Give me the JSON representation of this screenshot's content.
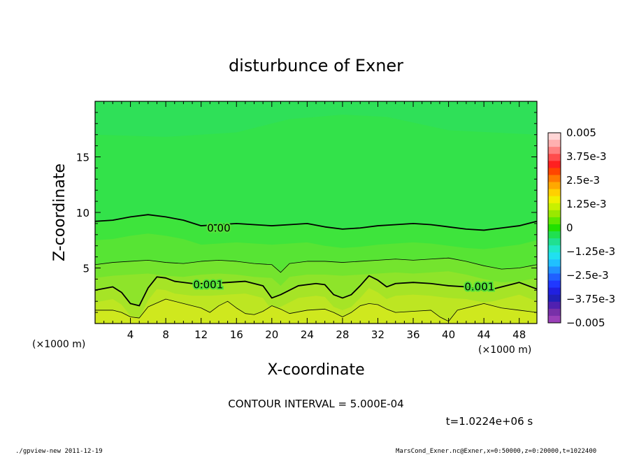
{
  "chart_data": {
    "type": "heatmap",
    "title": "disturbunce of Exner",
    "xlabel": "X-coordinate",
    "ylabel": "Z-coordinate",
    "x_unit": "(×1000 m)",
    "x_unit_left": "(×1000 m)",
    "xlim": [
      0,
      50
    ],
    "ylim": [
      0,
      20
    ],
    "xticks": [
      4,
      8,
      12,
      16,
      20,
      24,
      28,
      32,
      36,
      40,
      44,
      48
    ],
    "yticks": [
      5,
      10,
      15
    ],
    "colorbar": {
      "min": -0.005,
      "max": 0.005,
      "labels": [
        "0.005",
        "3.75e-3",
        "2.5e-3",
        "1.25e-3",
        "0",
        "−1.25e-3",
        "−2.5e-3",
        "−3.75e-3",
        "−0.005"
      ],
      "values": [
        0.005,
        0.00375,
        0.0025,
        0.00125,
        0,
        -0.00125,
        -0.0025,
        -0.00375,
        -0.005
      ]
    },
    "contour_labels": [
      {
        "text": "0.00",
        "x": 14.0,
        "z": 8.6
      },
      {
        "text": "0.001",
        "x": 12.8,
        "z": 3.5
      },
      {
        "text": "0.001",
        "x": 43.5,
        "z": 3.3
      }
    ],
    "contours": [
      {
        "level": "0.0000",
        "weight": "bold",
        "points": [
          [
            0,
            9.2
          ],
          [
            2,
            9.3
          ],
          [
            4,
            9.6
          ],
          [
            6,
            9.8
          ],
          [
            8,
            9.6
          ],
          [
            10,
            9.3
          ],
          [
            12,
            8.8
          ],
          [
            14,
            8.9
          ],
          [
            16,
            9.0
          ],
          [
            18,
            8.9
          ],
          [
            20,
            8.8
          ],
          [
            22,
            8.9
          ],
          [
            24,
            9.0
          ],
          [
            26,
            8.7
          ],
          [
            28,
            8.5
          ],
          [
            30,
            8.6
          ],
          [
            32,
            8.8
          ],
          [
            34,
            8.9
          ],
          [
            36,
            9.0
          ],
          [
            38,
            8.9
          ],
          [
            40,
            8.7
          ],
          [
            42,
            8.5
          ],
          [
            44,
            8.4
          ],
          [
            46,
            8.6
          ],
          [
            48,
            8.8
          ],
          [
            50,
            9.2
          ]
        ]
      },
      {
        "level": "0.0005",
        "weight": "thin",
        "points": [
          [
            0,
            5.3
          ],
          [
            2,
            5.5
          ],
          [
            4,
            5.6
          ],
          [
            6,
            5.7
          ],
          [
            8,
            5.5
          ],
          [
            10,
            5.4
          ],
          [
            12,
            5.6
          ],
          [
            14,
            5.7
          ],
          [
            16,
            5.6
          ],
          [
            18,
            5.4
          ],
          [
            20,
            5.3
          ],
          [
            21,
            4.6
          ],
          [
            22,
            5.4
          ],
          [
            24,
            5.6
          ],
          [
            26,
            5.6
          ],
          [
            28,
            5.5
          ],
          [
            30,
            5.6
          ],
          [
            32,
            5.7
          ],
          [
            34,
            5.8
          ],
          [
            36,
            5.7
          ],
          [
            38,
            5.8
          ],
          [
            40,
            5.9
          ],
          [
            42,
            5.6
          ],
          [
            44,
            5.2
          ],
          [
            46,
            4.9
          ],
          [
            48,
            5.0
          ],
          [
            50,
            5.3
          ]
        ]
      },
      {
        "level": "0.0010",
        "weight": "bold",
        "points": [
          [
            0,
            3.0
          ],
          [
            2,
            3.3
          ],
          [
            3,
            2.8
          ],
          [
            4,
            1.8
          ],
          [
            5,
            1.6
          ],
          [
            6,
            3.2
          ],
          [
            7,
            4.2
          ],
          [
            8,
            4.1
          ],
          [
            9,
            3.8
          ],
          [
            11,
            3.6
          ],
          [
            13,
            3.6
          ],
          [
            15,
            3.7
          ],
          [
            17,
            3.8
          ],
          [
            19,
            3.4
          ],
          [
            20,
            2.3
          ],
          [
            21,
            2.6
          ],
          [
            23,
            3.4
          ],
          [
            25,
            3.6
          ],
          [
            26,
            3.5
          ],
          [
            27,
            2.6
          ],
          [
            28,
            2.3
          ],
          [
            29,
            2.6
          ],
          [
            30,
            3.4
          ],
          [
            31,
            4.3
          ],
          [
            32,
            3.9
          ],
          [
            33,
            3.3
          ],
          [
            34,
            3.6
          ],
          [
            36,
            3.7
          ],
          [
            38,
            3.6
          ],
          [
            40,
            3.4
          ],
          [
            42,
            3.3
          ],
          [
            44,
            3.0
          ],
          [
            45,
            3.1
          ],
          [
            47,
            3.5
          ],
          [
            48,
            3.7
          ],
          [
            50,
            3.1
          ]
        ]
      },
      {
        "level": "0.0015",
        "weight": "thin",
        "points": [
          [
            0,
            1.2
          ],
          [
            2,
            1.2
          ],
          [
            3,
            1.0
          ],
          [
            4,
            0.6
          ],
          [
            5,
            0.5
          ],
          [
            6,
            1.5
          ],
          [
            8,
            2.2
          ],
          [
            10,
            1.8
          ],
          [
            12,
            1.4
          ],
          [
            13,
            1.0
          ],
          [
            14,
            1.6
          ],
          [
            15,
            2.0
          ],
          [
            16,
            1.4
          ],
          [
            17,
            0.9
          ],
          [
            18,
            0.8
          ],
          [
            19,
            1.1
          ],
          [
            20,
            1.6
          ],
          [
            21,
            1.3
          ],
          [
            22,
            0.9
          ],
          [
            24,
            1.2
          ],
          [
            26,
            1.3
          ],
          [
            27,
            1.0
          ],
          [
            28,
            0.6
          ],
          [
            29,
            1.0
          ],
          [
            30,
            1.6
          ],
          [
            31,
            1.8
          ],
          [
            32,
            1.7
          ],
          [
            33,
            1.3
          ],
          [
            34,
            1.0
          ],
          [
            36,
            1.1
          ],
          [
            38,
            1.2
          ],
          [
            39,
            0.6
          ],
          [
            40,
            0.2
          ],
          [
            41,
            1.2
          ],
          [
            43,
            1.6
          ],
          [
            44,
            1.8
          ],
          [
            46,
            1.4
          ],
          [
            48,
            1.2
          ],
          [
            50,
            1.0
          ]
        ]
      }
    ],
    "field_note": "perturbation field roughly 0 at top, increasing toward ~2e-3 near surface",
    "contour_interval": "CONTOUR INTERVAL = 5.000E-04",
    "time": "t=1.0224e+06 s"
  },
  "footer": {
    "left": "./gpview-new   2011-12-19",
    "right": "MarsCond_Exner.nc@Exner,x=0:50000,z=0:20000,t=1022400"
  }
}
